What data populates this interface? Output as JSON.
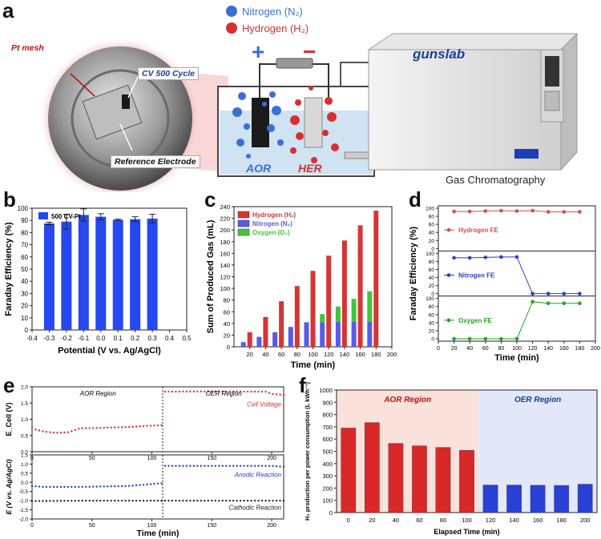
{
  "panel_labels": {
    "a": "a",
    "b": "b",
    "c": "c",
    "d": "d",
    "e": "e",
    "f": "f"
  },
  "panel_a": {
    "legend": {
      "nitrogen": "Nitrogen (N₂)",
      "hydrogen": "Hydrogen (H₂)"
    },
    "callouts": {
      "pt_mesh": "Pt mesh",
      "cv_cycle": "CV 500 Cycle",
      "reference_electrode": "Reference Electrode"
    },
    "electrodes": {
      "aor": "AOR",
      "her": "HER"
    },
    "polarity": {
      "plus": "+",
      "minus": "−"
    },
    "instrument_brand": "gunslab",
    "instrument_caption": "Gas Chromatography",
    "colors": {
      "nitrogen": "#3a6fd8",
      "hydrogen": "#d83030"
    }
  },
  "chart_data": [
    {
      "id": "b",
      "type": "bar",
      "title": "",
      "xlabel": "Potential (V vs. Ag/AgCl)",
      "ylabel": "Faraday Efficiency (%)",
      "xlim": [
        -0.4,
        0.5
      ],
      "ylim": [
        0,
        100
      ],
      "xticks": [
        "-0.4",
        "-0.3",
        "-0.2",
        "-0.1",
        "0.0",
        "0.1",
        "0.2",
        "0.3",
        "0.4",
        "0.5"
      ],
      "yticks": [
        "0",
        "10",
        "20",
        "30",
        "40",
        "50",
        "60",
        "70",
        "80",
        "90",
        "100"
      ],
      "legend": "500 CV-Pt",
      "color": "#2548f0",
      "x": [
        -0.3,
        -0.2,
        -0.1,
        0.0,
        0.1,
        0.2,
        0.3
      ],
      "values": [
        87.5,
        89,
        94.5,
        93,
        90.5,
        91,
        91.5
      ],
      "errors": [
        1,
        6,
        5,
        2.5,
        0.5,
        2,
        3.5
      ]
    },
    {
      "id": "c",
      "type": "bar",
      "title": "",
      "xlabel": "Time (min)",
      "ylabel": "Sum of Produced Gas (mL)",
      "xlim": [
        0,
        200
      ],
      "ylim": [
        0,
        240
      ],
      "xticks": [
        "20",
        "40",
        "60",
        "80",
        "100",
        "120",
        "140",
        "160",
        "180",
        "200"
      ],
      "yticks": [
        "0",
        "20",
        "40",
        "60",
        "80",
        "100",
        "120",
        "140",
        "160",
        "180",
        "200",
        "220",
        "240"
      ],
      "x": [
        20,
        40,
        60,
        80,
        100,
        120,
        140,
        160,
        180
      ],
      "series": [
        {
          "name": "Hydrogen (H₂)",
          "color": "#d83434",
          "values": [
            25,
            51,
            78,
            104,
            130,
            156,
            182,
            208,
            233
          ]
        },
        {
          "name": "Nitrogen (N₂)",
          "color": "#5a5ae8",
          "values": [
            8,
            17,
            25,
            34,
            42,
            42,
            43,
            43,
            43
          ]
        },
        {
          "name": "Oxygen (O₂)",
          "color": "#3cc83c",
          "values": [
            0,
            0,
            0,
            0,
            0,
            14,
            26,
            39,
            52
          ]
        }
      ]
    },
    {
      "id": "d",
      "type": "line",
      "title": "",
      "xlabel": "Time (min)",
      "ylabel": "Faraday Efficiency (%)",
      "xlim": [
        0,
        200
      ],
      "xticks": [
        "0",
        "20",
        "40",
        "60",
        "80",
        "100",
        "120",
        "140",
        "160",
        "180",
        "200"
      ],
      "yticks": [
        "0",
        "20",
        "40",
        "60",
        "80",
        "100"
      ],
      "x": [
        20,
        40,
        60,
        80,
        100,
        120,
        140,
        160,
        180
      ],
      "series": [
        {
          "name": "Hydrogen FE",
          "color": "#e04848",
          "values": [
            92,
            92,
            93,
            94,
            93,
            94,
            91,
            91,
            91
          ]
        },
        {
          "name": "Nitrogen FE",
          "color": "#2c3cc8",
          "values": [
            89,
            89,
            90,
            91,
            91,
            0,
            0,
            0,
            0
          ]
        },
        {
          "name": "Oxygen FE",
          "color": "#22a622",
          "values": [
            0,
            0,
            0,
            0,
            0,
            92,
            88,
            88,
            88
          ]
        }
      ]
    },
    {
      "id": "e",
      "type": "scatter",
      "title": "",
      "xlabel": "Time (min)",
      "xlim": [
        0,
        210
      ],
      "xticks": [
        "0",
        "50",
        "100",
        "150",
        "200"
      ],
      "top": {
        "ylabel": "E_Cell (V)",
        "ylim": [
          0,
          2.0
        ],
        "yticks": [
          "0.0",
          "0.5",
          "1.0",
          "1.5",
          "2.0"
        ],
        "regions": {
          "left": "AOR Region",
          "right": "OER Region"
        },
        "series": [
          {
            "name": "Cell Voltage",
            "color": "#d83030",
            "segments": [
              [
                0,
                0.75
              ],
              [
                3,
                0.68
              ],
              [
                10,
                0.62
              ],
              [
                20,
                0.58
              ],
              [
                30,
                0.6
              ],
              [
                40,
                0.72
              ],
              [
                60,
                0.74
              ],
              [
                80,
                0.76
              ],
              [
                108,
                0.82
              ],
              [
                110,
                1.85
              ],
              [
                150,
                1.86
              ],
              [
                195,
                1.85
              ],
              [
                200,
                1.78
              ],
              [
                210,
                1.75
              ]
            ]
          }
        ]
      },
      "bottom": {
        "ylabel": "E (V vs. Ag/AgCl)",
        "ylim": [
          -2.0,
          1.5
        ],
        "yticks": [
          "-2.0",
          "-1.5",
          "-1.0",
          "-0.5",
          "0.0",
          "0.5",
          "1.0",
          "1.5"
        ],
        "series": [
          {
            "name": "Anodic Reaction",
            "color": "#2040c8",
            "segments": [
              [
                0,
                -0.2
              ],
              [
                10,
                -0.25
              ],
              [
                40,
                -0.25
              ],
              [
                80,
                -0.2
              ],
              [
                108,
                -0.05
              ],
              [
                110,
                0.9
              ],
              [
                150,
                0.9
              ],
              [
                200,
                0.9
              ],
              [
                210,
                0.85
              ]
            ]
          },
          {
            "name": "Cathodic Reaction",
            "color": "#222222",
            "segments": [
              [
                0,
                -1.02
              ],
              [
                50,
                -1.0
              ],
              [
                108,
                -1.0
              ],
              [
                110,
                -1.0
              ],
              [
                210,
                -1.0
              ]
            ]
          }
        ]
      }
    },
    {
      "id": "f",
      "type": "bar",
      "title": "",
      "xlabel": "Elapsed Time (min)",
      "ylabel": "H₂ production per power consumption (L kWh⁻¹)",
      "ylim": [
        0,
        1000
      ],
      "yticks": [
        "0",
        "100",
        "200",
        "300",
        "400",
        "500",
        "600",
        "700",
        "800",
        "900",
        "1000"
      ],
      "categories": [
        "0",
        "20",
        "40",
        "60",
        "80",
        "100",
        "120",
        "140",
        "160",
        "180",
        "200"
      ],
      "values": [
        690,
        735,
        565,
        545,
        532,
        508,
        225,
        225,
        223,
        222,
        232
      ],
      "regions": {
        "left": "AOR Region",
        "right": "OER Region"
      },
      "colors": {
        "aor": "#d82828",
        "oer": "#2840d8",
        "aor_bg": "#fbe1dc",
        "oer_bg": "#e2e8fa"
      }
    }
  ]
}
